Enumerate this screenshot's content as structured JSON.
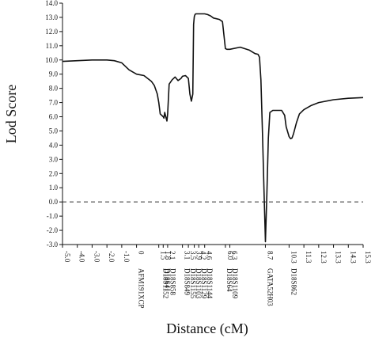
{
  "chart_data": {
    "type": "line",
    "xlabel": "Distance (cM)",
    "ylabel": "Lod Score",
    "xlim": [
      -5.0,
      15.3
    ],
    "ylim": [
      -3.0,
      14.0
    ],
    "grid": false,
    "x_ticks": [
      -5.0,
      -4.0,
      -3.0,
      -2.0,
      -1.0,
      0,
      1.5,
      1.8,
      2.1,
      3.1,
      3.5,
      3.9,
      4.2,
      4.6,
      6.0,
      6.3,
      8.7,
      10.3,
      11.3,
      12.3,
      13.3,
      14.3,
      15.3
    ],
    "x_tick_labels": [
      "-5.0",
      "-4.0",
      "-3.0",
      "-2.0",
      "-1.0",
      "0",
      "1.5",
      "1.8",
      "2.1",
      "3.1",
      "3.5",
      "3.9",
      "4.2",
      "4.6",
      "6.0",
      "6.3",
      "8.7",
      "10.3",
      "11.3",
      "12.3",
      "13.3",
      "14.3",
      "15.3"
    ],
    "y_ticks": [
      -3.0,
      -2.0,
      -1.0,
      0.0,
      1.0,
      2.0,
      3.0,
      4.0,
      5.0,
      6.0,
      7.0,
      8.0,
      9.0,
      10.0,
      11.0,
      12.0,
      13.0,
      14.0
    ],
    "y_tick_labels": [
      "-3.0",
      "-2.0",
      "-1.0",
      "0.0",
      "1.0",
      "2.0",
      "3.0",
      "4.0",
      "5.0",
      "6.0",
      "7.0",
      "8.0",
      "9.0",
      "10.0",
      "11.0",
      "12.0",
      "13.0",
      "14.0"
    ],
    "markers": [
      {
        "x": 0,
        "labels": [
          "AFM191XCP"
        ]
      },
      {
        "x": 1.65,
        "labels": [
          "D18S1152"
        ]
      },
      {
        "x": 1.95,
        "labels": [
          "D18S41",
          "D18S858"
        ]
      },
      {
        "x": 3.1,
        "labels": [
          "D18S849"
        ]
      },
      {
        "x": 4.05,
        "labels": [
          "D18S1155",
          "D18S1103",
          "D18S1129",
          "D18S1144"
        ]
      },
      {
        "x": 6.15,
        "labels": [
          "D18S64",
          "D18S1109"
        ]
      },
      {
        "x": 8.7,
        "labels": [
          "GATA52H03"
        ]
      },
      {
        "x": 10.3,
        "labels": [
          "D18S862"
        ]
      }
    ],
    "series": [
      {
        "x": [
          -5.0,
          -4.0,
          -3.0,
          -2.0,
          -1.5,
          -1.0,
          -0.5,
          0.0,
          0.5,
          1.0,
          1.2,
          1.4,
          1.5,
          1.6,
          1.8,
          1.85,
          1.9,
          2.0,
          2.05,
          2.1,
          2.2,
          2.4,
          2.6,
          2.8,
          3.0,
          3.1,
          3.3,
          3.5,
          3.6,
          3.7,
          3.8,
          3.85,
          3.9,
          3.95,
          4.0,
          4.1,
          4.2,
          4.4,
          4.6,
          4.8,
          5.0,
          5.2,
          5.4,
          5.6,
          5.8,
          6.0,
          6.1,
          6.3,
          7.0,
          7.6,
          8.0,
          8.2,
          8.3,
          8.4,
          8.5,
          8.6,
          8.7,
          8.8,
          8.9,
          9.0,
          9.2,
          9.5,
          9.8,
          10.0,
          10.1,
          10.3,
          10.4,
          10.5,
          10.6,
          10.8,
          11.0,
          11.3,
          11.8,
          12.3,
          13.3,
          14.3,
          15.3
        ],
        "y": [
          9.9,
          9.95,
          10.0,
          10.0,
          9.95,
          9.8,
          9.3,
          9.0,
          8.9,
          8.5,
          8.2,
          7.6,
          7.0,
          6.2,
          6.0,
          5.9,
          6.3,
          5.9,
          5.7,
          6.2,
          8.3,
          8.6,
          8.8,
          8.55,
          8.7,
          8.85,
          8.9,
          8.7,
          7.6,
          7.1,
          7.6,
          12.5,
          13.05,
          13.2,
          13.25,
          13.25,
          13.25,
          13.25,
          13.25,
          13.2,
          13.1,
          12.95,
          12.9,
          12.85,
          12.7,
          10.8,
          10.75,
          10.75,
          10.9,
          10.7,
          10.45,
          10.4,
          10.2,
          8.6,
          5.0,
          1.0,
          -2.8,
          0.5,
          4.5,
          6.3,
          6.45,
          6.45,
          6.45,
          6.1,
          5.3,
          4.6,
          4.45,
          4.5,
          4.8,
          5.6,
          6.2,
          6.5,
          6.8,
          7.0,
          7.2,
          7.3,
          7.35
        ]
      }
    ],
    "reference_line": {
      "y": 0.0,
      "style": "dashed"
    }
  }
}
